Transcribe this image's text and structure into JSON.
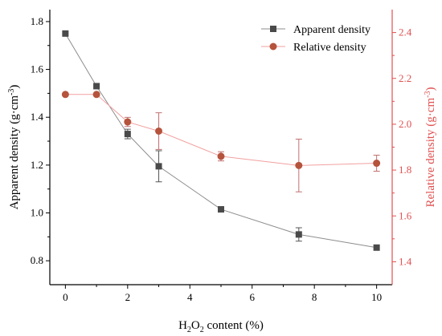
{
  "chart_data": {
    "type": "line",
    "x": [
      0,
      1,
      2,
      3,
      5,
      7.5,
      10
    ],
    "xlim": [
      -0.5,
      10.5
    ],
    "xticks": [
      0,
      2,
      4,
      6,
      8,
      10
    ],
    "xlabel": {
      "prefix": "H",
      "sub1": "2",
      "mid": "O",
      "sub2": "2",
      "suffix": " content (%)"
    },
    "y_left": {
      "label_prefix": "Apparent density (g·cm",
      "label_sup": "-3",
      "label_suffix": ")",
      "lim": [
        0.7,
        1.85
      ],
      "ticks": [
        0.8,
        1.0,
        1.2,
        1.4,
        1.6,
        1.8
      ],
      "tick_labels": [
        "0.8",
        "1.0",
        "1.2",
        "1.4",
        "1.6",
        "1.8"
      ],
      "color": "#000000"
    },
    "y_right": {
      "label_prefix": "Relative density (g·cm",
      "label_sup": "-3",
      "label_suffix": ")",
      "lim": [
        1.3,
        2.5
      ],
      "ticks": [
        1.4,
        1.6,
        1.8,
        2.0,
        2.2,
        2.4
      ],
      "tick_labels": [
        "1.4",
        "1.6",
        "1.8",
        "2.0",
        "2.2",
        "2.4"
      ],
      "color": "#e05050"
    },
    "series": [
      {
        "name": "Apparent density",
        "axis": "left",
        "values": [
          1.75,
          1.53,
          1.33,
          1.195,
          1.015,
          0.91,
          0.855
        ],
        "errors": [
          0,
          0,
          0.02,
          0.065,
          0,
          0.028,
          0
        ],
        "color": "#4a4a4a",
        "line_color": "#8c8c8c",
        "marker": "square"
      },
      {
        "name": "Relative density",
        "axis": "right",
        "values": [
          2.13,
          2.13,
          2.01,
          1.97,
          1.86,
          1.82,
          1.83
        ],
        "errors": [
          0,
          0,
          0.02,
          0.08,
          0.02,
          0.115,
          0.035
        ],
        "color": "#b5533c",
        "line_color": "#f2a0a0",
        "marker": "circle"
      }
    ],
    "legend_position": "top-right",
    "grid": false
  }
}
